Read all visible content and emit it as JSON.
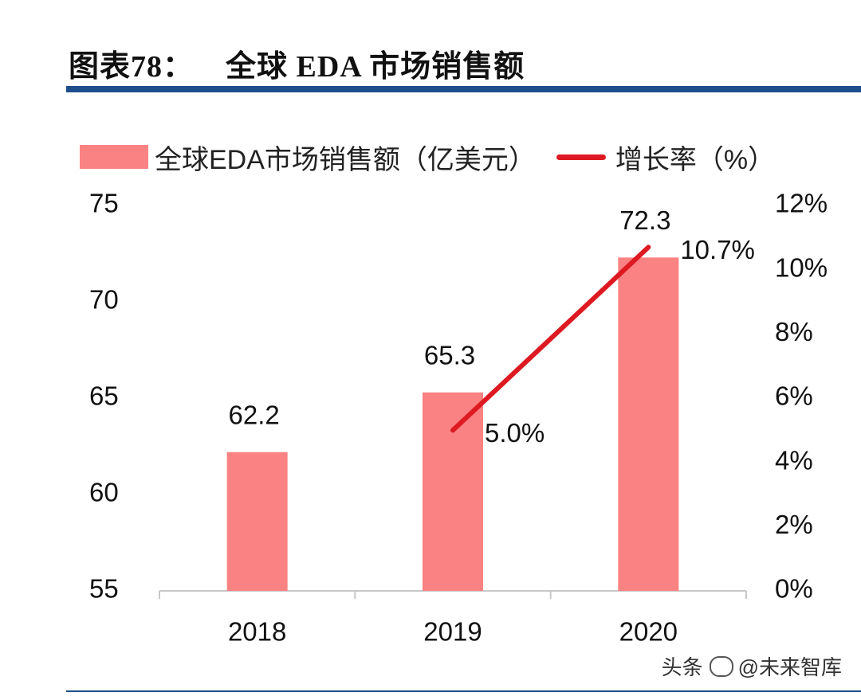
{
  "figure": {
    "label": "图表78：",
    "title": "全球 EDA 市场销售额"
  },
  "watermark": {
    "prefix": "头条",
    "handle": "@未来智库"
  },
  "colors": {
    "bar": "#fb8282",
    "line": "#dd1a21",
    "rule": "#1f4e8c",
    "axis": "#c8c8c8"
  },
  "chart_data": {
    "type": "bar",
    "categories": [
      "2018",
      "2019",
      "2020"
    ],
    "series": [
      {
        "name": "全球EDA市场销售额（亿美元）",
        "type": "bar",
        "axis": "left",
        "values": [
          62.2,
          65.3,
          72.3
        ],
        "labels": [
          "62.2",
          "65.3",
          "72.3"
        ]
      },
      {
        "name": "增长率（%）",
        "type": "line",
        "axis": "right",
        "values": [
          null,
          5.0,
          10.7
        ],
        "labels": [
          "",
          "5.0%",
          "10.7%"
        ]
      }
    ],
    "y_left": {
      "min": 55,
      "max": 75,
      "ticks": [
        55,
        60,
        65,
        70,
        75
      ],
      "tick_labels": [
        "55",
        "60",
        "65",
        "70",
        "75"
      ]
    },
    "y_right": {
      "min": 0,
      "max": 12,
      "ticks": [
        0,
        2,
        4,
        6,
        8,
        10,
        12
      ],
      "tick_labels": [
        "0%",
        "2%",
        "4%",
        "6%",
        "8%",
        "10%",
        "12%"
      ]
    },
    "legend_position": "top",
    "grid": false
  }
}
